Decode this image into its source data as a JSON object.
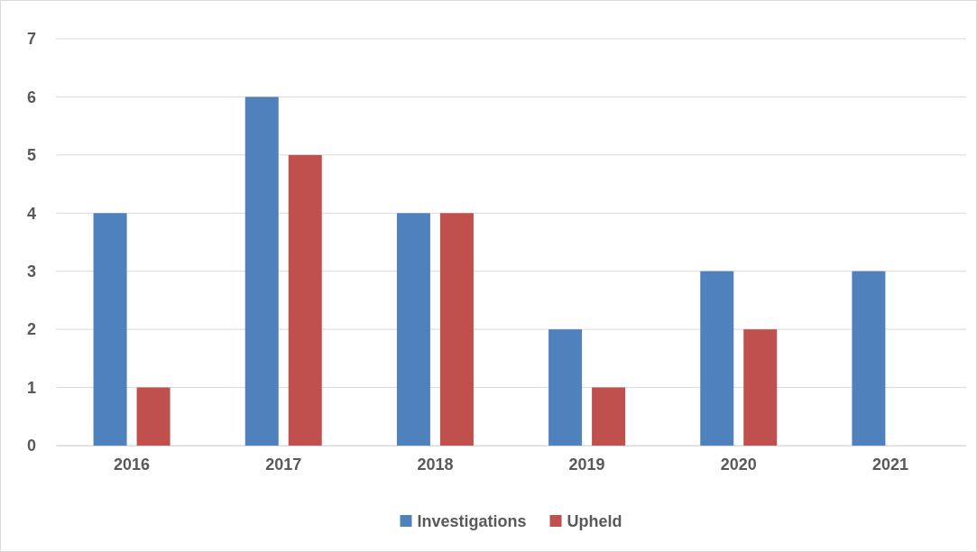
{
  "chart_data": {
    "type": "bar",
    "categories": [
      "2016",
      "2017",
      "2018",
      "2019",
      "2020",
      "2021"
    ],
    "series": [
      {
        "name": "Investigations",
        "color": "#4f81bd",
        "values": [
          4,
          6,
          4,
          2,
          3,
          3
        ]
      },
      {
        "name": "Upheld",
        "color": "#c0504d",
        "values": [
          1,
          5,
          4,
          1,
          2,
          0
        ]
      }
    ],
    "ylim": [
      0,
      7
    ],
    "yticks": [
      0,
      1,
      2,
      3,
      4,
      5,
      6,
      7
    ],
    "grid": "y",
    "legend": "bottom"
  }
}
